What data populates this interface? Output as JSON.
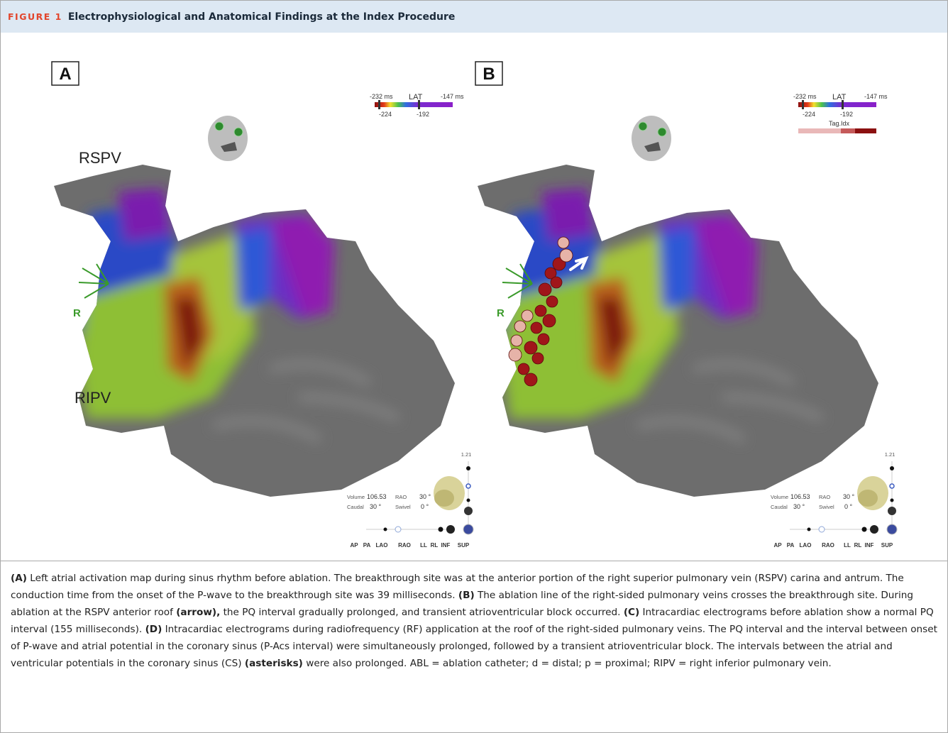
{
  "header": {
    "figure_label": "FIGURE 1",
    "title": "Electrophysiological and Anatomical Findings at the Index Procedure"
  },
  "panels": [
    {
      "label": "A",
      "annotations": [
        "RSPV",
        "RIPV"
      ],
      "orientation_label": "R",
      "lat": {
        "min_label": "-232 ms",
        "title": "LAT",
        "max_label": "-147 ms",
        "marks": [
          "-224",
          "-192"
        ]
      },
      "scale_max": "1.21",
      "view": {
        "volume_label": "Volume",
        "volume": "106.53",
        "rao_label": "RAO",
        "rao": "30 °",
        "caudal_label": "Caudal",
        "caudal": "30 °",
        "swivel_label": "Swivel",
        "swivel": "0 °"
      },
      "view_buttons": [
        "AP",
        "PA",
        "LAO",
        "RAO",
        "LL",
        "RL",
        "INF",
        "SUP"
      ]
    },
    {
      "label": "B",
      "orientation_label": "R",
      "lat": {
        "min_label": "-232 ms",
        "title": "LAT",
        "max_label": "-147 ms",
        "marks": [
          "-224",
          "-192"
        ]
      },
      "tag_index": "Tag.Idx",
      "scale_max": "1.21",
      "view": {
        "volume_label": "Volume",
        "volume": "106.53",
        "rao_label": "RAO",
        "rao": "30 °",
        "caudal_label": "Caudal",
        "caudal": "30 °",
        "swivel_label": "Swivel",
        "swivel": "0 °"
      },
      "view_buttons": [
        "AP",
        "PA",
        "LAO",
        "RAO",
        "LL",
        "RL",
        "INF",
        "SUP"
      ]
    }
  ],
  "caption": {
    "segments": [
      {
        "text": "(A)",
        "bold": true
      },
      {
        "text": " Left atrial activation map during sinus rhythm before ablation. The breakthrough site was at the anterior portion of the right superior pulmonary vein (RSPV) carina and antrum. The conduction time from the onset of the P-wave to the breakthrough site was 39 milliseconds. ",
        "bold": false
      },
      {
        "text": "(B)",
        "bold": true
      },
      {
        "text": " The ablation line of the right-sided pulmonary veins crosses the breakthrough site. During ablation at the RSPV anterior roof ",
        "bold": false
      },
      {
        "text": "(arrow),",
        "bold": true
      },
      {
        "text": " the PQ interval gradually prolonged, and transient atrioventricular block occurred. ",
        "bold": false
      },
      {
        "text": "(C)",
        "bold": true
      },
      {
        "text": " Intracardiac electrograms before ablation show a normal PQ interval (155 milliseconds). ",
        "bold": false
      },
      {
        "text": "(D)",
        "bold": true
      },
      {
        "text": " Intracardiac electrograms during radiofrequency (RF) application at the roof of the right-sided pulmonary veins. The PQ interval and the interval between onset of P-wave and atrial potential in the coronary sinus (P-Acs interval) were simultaneously prolonged, followed by a transient atrioventricular block. The intervals between the atrial and ventricular potentials in the coronary sinus (CS) ",
        "bold": false
      },
      {
        "text": "(asterisks)",
        "bold": true
      },
      {
        "text": " were also prolonged. ABL = ablation catheter; d = distal; p = proximal; RIPV = right inferior pulmonary vein.",
        "bold": false
      }
    ]
  }
}
